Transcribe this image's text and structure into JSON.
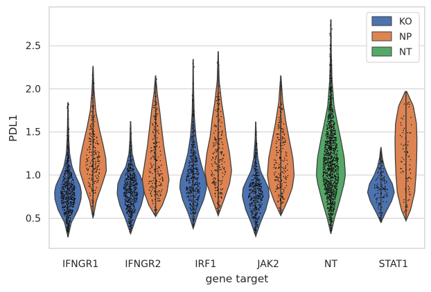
{
  "chart_data": {
    "type": "violin",
    "xlabel": "gene target",
    "ylabel": "PDL1",
    "categories": [
      "IFNGR1",
      "IFNGR2",
      "IRF1",
      "JAK2",
      "NT",
      "STAT1"
    ],
    "yticks": [
      "0.5",
      "1.0",
      "1.5",
      "2.0",
      "2.5"
    ],
    "ylim": [
      0.15,
      2.95
    ],
    "grid": "horizontal",
    "legend": {
      "placement": "top-right",
      "entries": [
        {
          "label": "KO",
          "color": "#4c72b0"
        },
        {
          "label": "NP",
          "color": "#dd8452"
        },
        {
          "label": "NT",
          "color": "#55a868"
        }
      ]
    },
    "series": [
      {
        "name": "KO",
        "color": "#4c72b0",
        "violins": {
          "IFNGR1": {
            "min": 0.28,
            "max": 1.84,
            "median": 0.8,
            "n": 600,
            "profile": [
              [
                0.28,
                0
              ],
              [
                0.45,
                0.25
              ],
              [
                0.6,
                0.75
              ],
              [
                0.72,
                0.97
              ],
              [
                0.8,
                1.0
              ],
              [
                0.88,
                0.9
              ],
              [
                0.98,
                0.6
              ],
              [
                1.1,
                0.3
              ],
              [
                1.25,
                0.12
              ],
              [
                1.45,
                0.05
              ],
              [
                1.84,
                0.01
              ]
            ]
          },
          "IFNGR2": {
            "min": 0.32,
            "max": 1.62,
            "median": 0.8,
            "n": 500,
            "profile": [
              [
                0.32,
                0
              ],
              [
                0.5,
                0.4
              ],
              [
                0.65,
                0.8
              ],
              [
                0.78,
                1.0
              ],
              [
                0.9,
                0.95
              ],
              [
                1.0,
                0.7
              ],
              [
                1.1,
                0.35
              ],
              [
                1.25,
                0.12
              ],
              [
                1.4,
                0.05
              ],
              [
                1.62,
                0.01
              ]
            ]
          },
          "IRF1": {
            "min": 0.38,
            "max": 2.34,
            "median": 0.9,
            "n": 400,
            "profile": [
              [
                0.38,
                0
              ],
              [
                0.55,
                0.35
              ],
              [
                0.72,
                0.8
              ],
              [
                0.85,
                1.0
              ],
              [
                0.95,
                0.95
              ],
              [
                1.1,
                0.65
              ],
              [
                1.25,
                0.4
              ],
              [
                1.45,
                0.2
              ],
              [
                1.7,
                0.08
              ],
              [
                2.0,
                0.03
              ],
              [
                2.34,
                0.01
              ]
            ]
          },
          "JAK2": {
            "min": 0.29,
            "max": 1.62,
            "median": 0.8,
            "n": 400,
            "profile": [
              [
                0.29,
                0
              ],
              [
                0.45,
                0.35
              ],
              [
                0.6,
                0.75
              ],
              [
                0.75,
                1.0
              ],
              [
                0.85,
                0.95
              ],
              [
                0.95,
                0.65
              ],
              [
                1.05,
                0.35
              ],
              [
                1.2,
                0.15
              ],
              [
                1.4,
                0.05
              ],
              [
                1.62,
                0.01
              ]
            ]
          },
          "STAT1": {
            "min": 0.45,
            "max": 1.32,
            "median": 0.82,
            "n": 120,
            "profile": [
              [
                0.45,
                0
              ],
              [
                0.55,
                0.3
              ],
              [
                0.7,
                0.8
              ],
              [
                0.8,
                1.0
              ],
              [
                0.9,
                0.85
              ],
              [
                1.0,
                0.5
              ],
              [
                1.1,
                0.25
              ],
              [
                1.2,
                0.1
              ],
              [
                1.32,
                0.01
              ]
            ]
          }
        }
      },
      {
        "name": "NP",
        "color": "#dd8452",
        "violins": {
          "IFNGR1": {
            "min": 0.5,
            "max": 2.26,
            "median": 1.1,
            "n": 200,
            "profile": [
              [
                0.5,
                0
              ],
              [
                0.7,
                0.25
              ],
              [
                0.9,
                0.7
              ],
              [
                1.05,
                1.0
              ],
              [
                1.2,
                0.95
              ],
              [
                1.35,
                0.75
              ],
              [
                1.55,
                0.45
              ],
              [
                1.75,
                0.2
              ],
              [
                2.0,
                0.07
              ],
              [
                2.26,
                0.01
              ]
            ]
          },
          "IFNGR2": {
            "min": 0.52,
            "max": 2.15,
            "median": 1.0,
            "n": 200,
            "profile": [
              [
                0.52,
                0
              ],
              [
                0.65,
                0.5
              ],
              [
                0.8,
                0.85
              ],
              [
                0.95,
                1.0
              ],
              [
                1.15,
                0.8
              ],
              [
                1.35,
                0.6
              ],
              [
                1.55,
                0.45
              ],
              [
                1.75,
                0.3
              ],
              [
                1.95,
                0.12
              ],
              [
                2.15,
                0.01
              ]
            ]
          },
          "IRF1": {
            "min": 0.53,
            "max": 2.43,
            "median": 1.05,
            "n": 200,
            "profile": [
              [
                0.53,
                0
              ],
              [
                0.7,
                0.4
              ],
              [
                0.9,
                0.85
              ],
              [
                1.05,
                1.0
              ],
              [
                1.25,
                0.85
              ],
              [
                1.45,
                0.6
              ],
              [
                1.65,
                0.45
              ],
              [
                1.85,
                0.25
              ],
              [
                2.1,
                0.07
              ],
              [
                2.43,
                0.01
              ]
            ]
          },
          "JAK2": {
            "min": 0.53,
            "max": 2.15,
            "median": 1.0,
            "n": 200,
            "profile": [
              [
                0.53,
                0
              ],
              [
                0.7,
                0.5
              ],
              [
                0.85,
                0.85
              ],
              [
                1.0,
                1.0
              ],
              [
                1.2,
                0.9
              ],
              [
                1.4,
                0.65
              ],
              [
                1.6,
                0.4
              ],
              [
                1.85,
                0.15
              ],
              [
                2.15,
                0.01
              ]
            ]
          },
          "STAT1": {
            "min": 0.47,
            "max": 1.97,
            "median": 1.0,
            "n": 80,
            "profile": [
              [
                0.47,
                0
              ],
              [
                0.6,
                0.35
              ],
              [
                0.8,
                0.65
              ],
              [
                1.0,
                0.75
              ],
              [
                1.2,
                0.8
              ],
              [
                1.4,
                0.82
              ],
              [
                1.6,
                0.78
              ],
              [
                1.8,
                0.55
              ],
              [
                1.97,
                0.05
              ]
            ]
          }
        }
      },
      {
        "name": "NT",
        "color": "#55a868",
        "violins": {
          "NT": {
            "min": 0.32,
            "max": 2.8,
            "median": 1.0,
            "n": 1200,
            "profile": [
              [
                0.32,
                0
              ],
              [
                0.5,
                0.25
              ],
              [
                0.7,
                0.6
              ],
              [
                0.9,
                0.9
              ],
              [
                1.0,
                1.0
              ],
              [
                1.2,
                0.92
              ],
              [
                1.4,
                0.7
              ],
              [
                1.6,
                0.45
              ],
              [
                1.8,
                0.22
              ],
              [
                2.1,
                0.08
              ],
              [
                2.4,
                0.03
              ],
              [
                2.8,
                0.01
              ]
            ]
          }
        }
      }
    ]
  }
}
